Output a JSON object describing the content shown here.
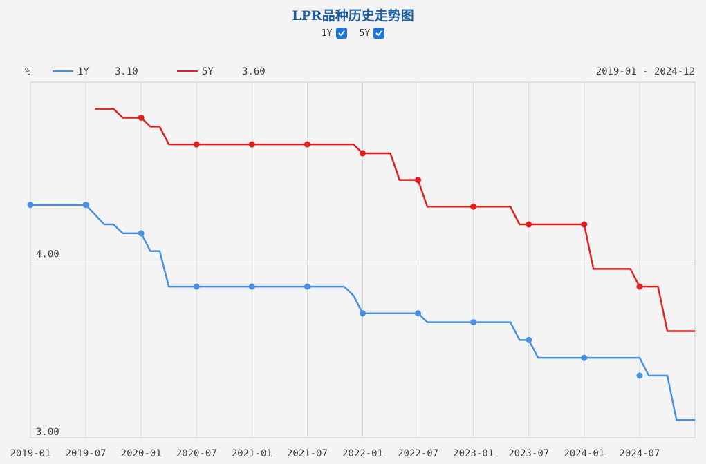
{
  "title": "LPR品种历史走势图",
  "toggles": [
    {
      "label": "1Y",
      "checked": true
    },
    {
      "label": "5Y",
      "checked": true
    }
  ],
  "legend": {
    "unit": "%",
    "items": [
      {
        "label": "1Y",
        "value": "3.10",
        "color": "#4a90e2"
      },
      {
        "label": "5Y",
        "value": "3.60",
        "color": "#e02020"
      }
    ],
    "range": "2019-01 - 2024-12"
  },
  "chart_data": {
    "type": "line",
    "xlabels": [
      "2019-01",
      "2019-07",
      "2020-01",
      "2020-07",
      "2021-01",
      "2021-07",
      "2022-01",
      "2022-07",
      "2023-01",
      "2023-07",
      "2024-01",
      "2024-07"
    ],
    "ytick_labels": [
      "4.00",
      "3.00"
    ],
    "ylim": [
      3.0,
      5.0
    ],
    "xlim": [
      0,
      72
    ],
    "series": [
      {
        "name": "1Y",
        "color": "#4a90e2",
        "points": [
          [
            0,
            4.31
          ],
          [
            6,
            4.31
          ],
          [
            8,
            4.2
          ],
          [
            9,
            4.2
          ],
          [
            10,
            4.15
          ],
          [
            12,
            4.15
          ],
          [
            13,
            4.05
          ],
          [
            14,
            4.05
          ],
          [
            15,
            3.85
          ],
          [
            18,
            3.85
          ],
          [
            24,
            3.85
          ],
          [
            30,
            3.85
          ],
          [
            34,
            3.85
          ],
          [
            35,
            3.8
          ],
          [
            36,
            3.7
          ],
          [
            42,
            3.7
          ],
          [
            43,
            3.65
          ],
          [
            48,
            3.65
          ],
          [
            52,
            3.65
          ],
          [
            53,
            3.55
          ],
          [
            54,
            3.55
          ],
          [
            55,
            3.45
          ],
          [
            60,
            3.45
          ],
          [
            66,
            3.45
          ],
          [
            67,
            3.35
          ],
          [
            69,
            3.35
          ],
          [
            70,
            3.1
          ],
          [
            72,
            3.1
          ]
        ],
        "markers": [
          [
            0,
            4.31
          ],
          [
            6,
            4.31
          ],
          [
            12,
            4.15
          ],
          [
            18,
            3.85
          ],
          [
            24,
            3.85
          ],
          [
            30,
            3.85
          ],
          [
            36,
            3.7
          ],
          [
            42,
            3.7
          ],
          [
            48,
            3.65
          ],
          [
            54,
            3.55
          ],
          [
            60,
            3.45
          ],
          [
            66,
            3.35
          ]
        ]
      },
      {
        "name": "5Y",
        "color": "#e02020",
        "points": [
          [
            7,
            4.85
          ],
          [
            9,
            4.85
          ],
          [
            10,
            4.8
          ],
          [
            12,
            4.8
          ],
          [
            13,
            4.75
          ],
          [
            14,
            4.75
          ],
          [
            15,
            4.65
          ],
          [
            18,
            4.65
          ],
          [
            24,
            4.65
          ],
          [
            30,
            4.65
          ],
          [
            35,
            4.65
          ],
          [
            36,
            4.6
          ],
          [
            39,
            4.6
          ],
          [
            40,
            4.45
          ],
          [
            42,
            4.45
          ],
          [
            43,
            4.3
          ],
          [
            48,
            4.3
          ],
          [
            52,
            4.3
          ],
          [
            53,
            4.2
          ],
          [
            54,
            4.2
          ],
          [
            60,
            4.2
          ],
          [
            61,
            3.95
          ],
          [
            65,
            3.95
          ],
          [
            66,
            3.85
          ],
          [
            68,
            3.85
          ],
          [
            69,
            3.6
          ],
          [
            72,
            3.6
          ]
        ],
        "markers": [
          [
            12,
            4.8
          ],
          [
            18,
            4.65
          ],
          [
            24,
            4.65
          ],
          [
            30,
            4.65
          ],
          [
            36,
            4.6
          ],
          [
            42,
            4.45
          ],
          [
            48,
            4.3
          ],
          [
            54,
            4.2
          ],
          [
            60,
            4.2
          ],
          [
            66,
            3.85
          ]
        ]
      }
    ]
  }
}
